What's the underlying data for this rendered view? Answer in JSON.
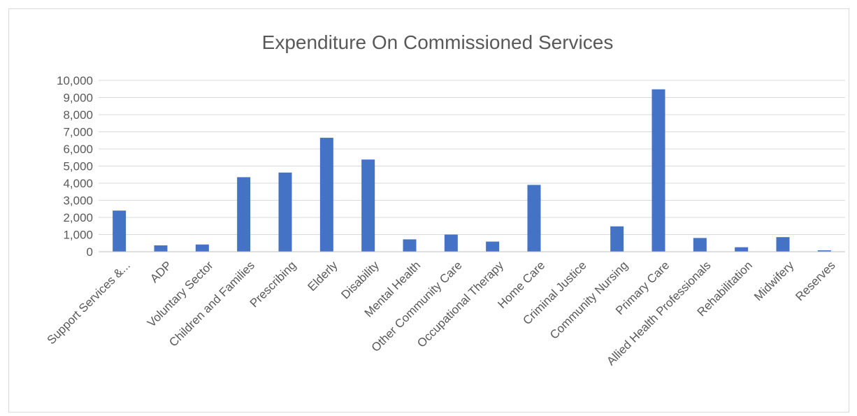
{
  "chart_data": {
    "type": "bar",
    "title": "Expenditure On Commissioned Services",
    "xlabel": "",
    "ylabel": "",
    "categories": [
      "Support Services &...",
      "ADP",
      "Voluntary Sector",
      "Children and Families",
      "Prescribing",
      "Elderly",
      "Disability",
      "Mental Health",
      "Other Community Care",
      "Occupational Therapy",
      "Home Care",
      "Criminal Justice",
      "Community Nursing",
      "Primary Care",
      "Allied Health Professionals",
      "Rehabilitation",
      "Midwifery",
      "Reserves"
    ],
    "values": [
      2400,
      370,
      420,
      4350,
      4620,
      6650,
      5380,
      720,
      1000,
      590,
      3900,
      0,
      1480,
      9480,
      800,
      260,
      850,
      80
    ],
    "ylim": [
      0,
      10000
    ],
    "yticks": [
      "0",
      "1,000",
      "2,000",
      "3,000",
      "4,000",
      "5,000",
      "6,000",
      "7,000",
      "8,000",
      "9,000",
      "10,000"
    ],
    "grid": true,
    "legend": "none",
    "bar_color": "#4472c4"
  }
}
